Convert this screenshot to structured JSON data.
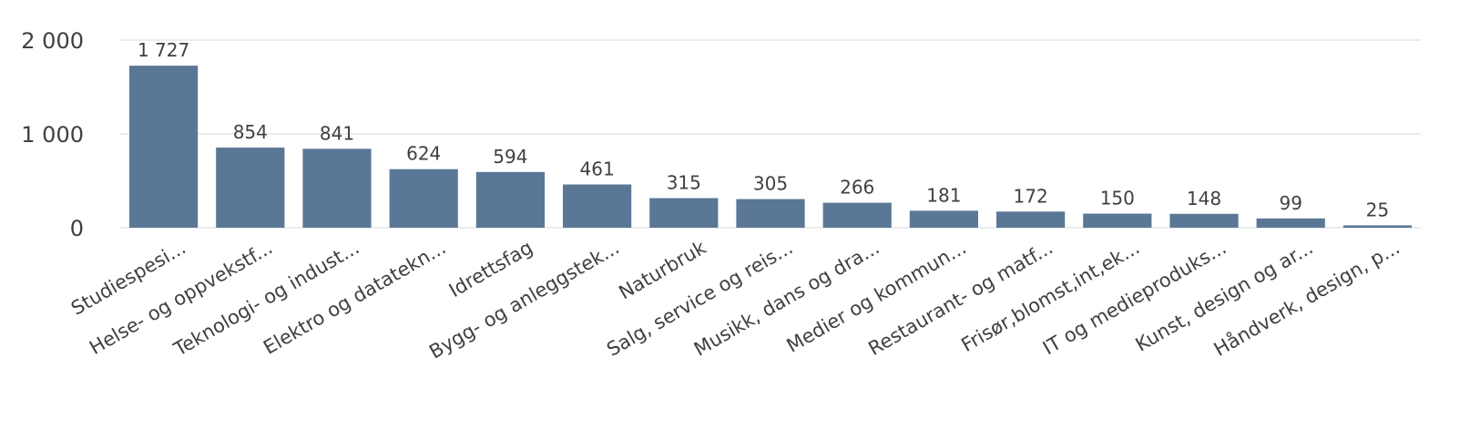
{
  "chart_data": {
    "type": "bar",
    "title": "",
    "xlabel": "",
    "ylabel": "",
    "ylim": [
      0,
      2000
    ],
    "yticks": [
      0,
      1000,
      2000
    ],
    "ytick_labels": [
      "0",
      "1 000",
      "2 000"
    ],
    "grid": true,
    "legend": "none",
    "bar_color": "#5a7896",
    "categories": [
      "Studiespesi...",
      "Helse- og oppvekstf...",
      "Teknologi- og indust...",
      "Elektro og datatekn...",
      "Idrettsfag",
      "Bygg- og anleggstek...",
      "Naturbruk",
      "Salg, service og reis...",
      "Musikk, dans og dra...",
      "Medier og kommun...",
      "Restaurant- og matf...",
      "Frisør,blomst,int,ek...",
      "IT og medieproduks...",
      "Kunst, design og ar...",
      "Håndverk, design, p..."
    ],
    "values": [
      1727,
      854,
      841,
      624,
      594,
      461,
      315,
      305,
      266,
      181,
      172,
      150,
      148,
      99,
      25
    ],
    "value_labels": [
      "1 727",
      "854",
      "841",
      "624",
      "594",
      "461",
      "315",
      "305",
      "266",
      "181",
      "172",
      "150",
      "148",
      "99",
      "25"
    ]
  }
}
